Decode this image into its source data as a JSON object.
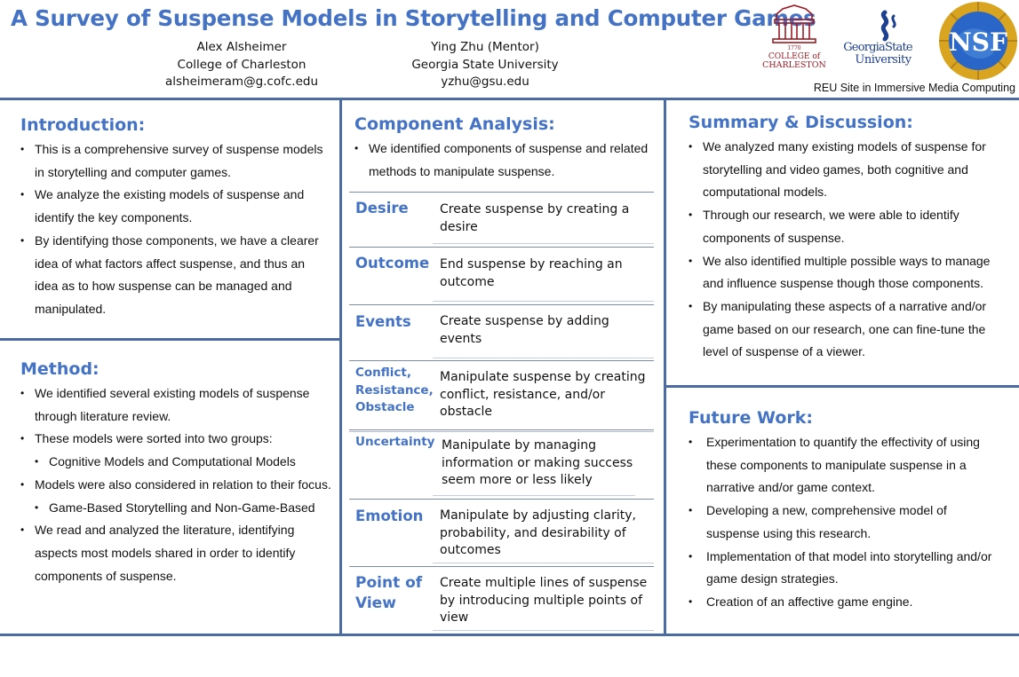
{
  "header": {
    "title": "A Survey of Suspense Models in Storytelling and Computer Games",
    "authors": [
      {
        "name": "Alex Alsheimer",
        "affiliation": "College of Charleston",
        "email": "alsheimeram@g.cofc.edu"
      },
      {
        "name": "Ying Zhu (Mentor)",
        "affiliation": "Georgia State University",
        "email": "yzhu@gsu.edu"
      }
    ],
    "logos": {
      "cofc": {
        "line1": "COLLEGE of",
        "line2": "CHARLESTON",
        "year": "1770",
        "color": "#9b1c24"
      },
      "gsu": {
        "line1": "GeorgiaState",
        "line2": "University",
        "color": "#1d3f8f"
      },
      "nsf": {
        "text": "NSF",
        "color": "#1e5bb8"
      }
    },
    "reu": "REU Site in Immersive Media Computing"
  },
  "colors": {
    "accent": "#4472c4",
    "rule": "#4a6ca3"
  },
  "introduction": {
    "heading": "Introduction:",
    "bullets": [
      "This is a comprehensive survey of suspense models in storytelling and computer games.",
      "We analyze the existing models of suspense and identify the key components.",
      "By identifying those components, we have a clearer idea of what factors affect suspense, and thus an idea as to how suspense can be managed and manipulated."
    ]
  },
  "method": {
    "heading": "Method:",
    "bullets": [
      {
        "text": "We identified several existing models of suspense through literature review.",
        "sub": false
      },
      {
        "text": "These models were sorted into two groups:",
        "sub": false
      },
      {
        "text": "Cognitive Models and Computational Models",
        "sub": true
      },
      {
        "text": "Models were also considered in relation to their focus.",
        "sub": false
      },
      {
        "text": "Game-Based Storytelling and Non-Game-Based",
        "sub": true
      },
      {
        "text": "We read and analyzed the literature, identifying aspects most models shared in order to identify components of suspense.",
        "sub": false
      }
    ]
  },
  "component_analysis": {
    "heading": "Component Analysis:",
    "intro": "We identified components of suspense and related methods to manipulate suspense.",
    "components": [
      {
        "label": "Desire",
        "desc": "Create suspense by creating a desire"
      },
      {
        "label": "Outcome",
        "desc": "End suspense by reaching an outcome"
      },
      {
        "label": "Events",
        "desc": "Create suspense by adding events"
      },
      {
        "label": "Conflict, Resistance, Obstacle",
        "desc": "Manipulate suspense by creating conflict, resistance, and/or obstacle"
      },
      {
        "label": "Uncertainty",
        "desc": "Manipulate by managing information or making success seem more or less likely"
      },
      {
        "label": "Emotion",
        "desc": "Manipulate by adjusting clarity, probability, and desirability of outcomes"
      },
      {
        "label": "Point of View",
        "desc": "Create multiple lines of suspense by introducing multiple points of view"
      }
    ]
  },
  "summary": {
    "heading": "Summary & Discussion:",
    "bullets": [
      "We analyzed many existing models of suspense for storytelling and video games, both cognitive and computational models.",
      "Through our research, we were able to identify components of suspense.",
      "We also identified multiple possible ways to manage and influence suspense though those components.",
      "By manipulating these aspects of a narrative and/or game based on our research, one can fine-tune the level of suspense of a viewer."
    ]
  },
  "future_work": {
    "heading": "Future Work:",
    "bullets": [
      "Experimentation to quantify the effectivity of using these components to manipulate suspense in a narrative and/or game context.",
      "Developing a new, comprehensive model of suspense using this research.",
      "Implementation of that model into storytelling and/or game design strategies.",
      "Creation of an affective game engine."
    ]
  }
}
